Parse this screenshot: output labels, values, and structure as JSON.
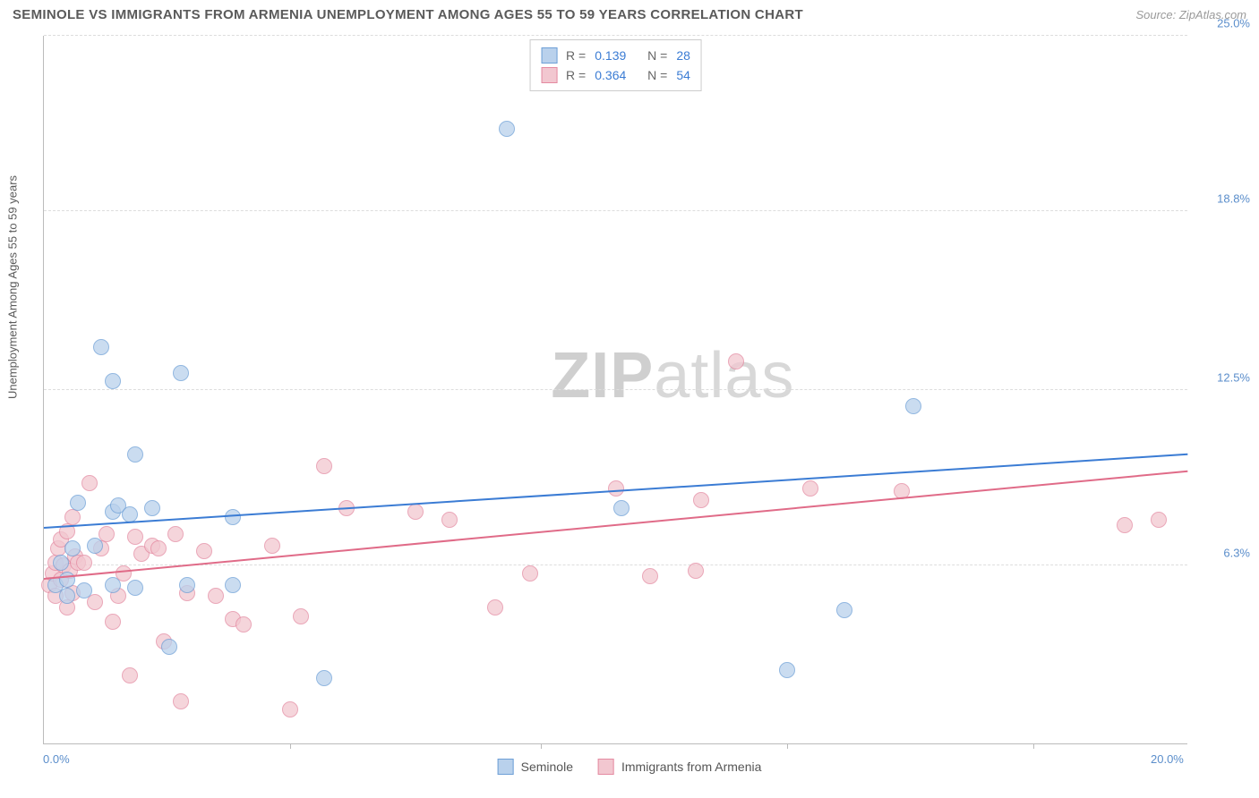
{
  "header": {
    "title": "SEMINOLE VS IMMIGRANTS FROM ARMENIA UNEMPLOYMENT AMONG AGES 55 TO 59 YEARS CORRELATION CHART",
    "source": "Source: ZipAtlas.com"
  },
  "watermark": {
    "part1": "ZIP",
    "part2": "atlas"
  },
  "y_axis": {
    "label": "Unemployment Among Ages 55 to 59 years"
  },
  "stats": {
    "rows": [
      {
        "r_label": "R =",
        "r": "0.139",
        "n_label": "N =",
        "n": "28"
      },
      {
        "r_label": "R =",
        "r": "0.364",
        "n_label": "N =",
        "n": "54"
      }
    ]
  },
  "legend": {
    "items": [
      {
        "label": "Seminole"
      },
      {
        "label": "Immigrants from Armenia"
      }
    ]
  },
  "chart": {
    "type": "scatter",
    "xlim": [
      0,
      20
    ],
    "ylim": [
      0,
      25
    ],
    "x_ticks": [
      {
        "val": 0,
        "label": "0.0%"
      },
      {
        "val": 20,
        "label": "20.0%"
      }
    ],
    "x_marks": [
      4.3,
      8.7,
      13.0,
      17.3
    ],
    "y_ticks": [
      {
        "val": 6.3,
        "label": "6.3%"
      },
      {
        "val": 12.5,
        "label": "12.5%"
      },
      {
        "val": 18.8,
        "label": "18.8%"
      },
      {
        "val": 25.0,
        "label": "25.0%"
      }
    ],
    "grid_y": [
      6.3,
      12.5,
      18.8,
      25.0
    ],
    "background_color": "#ffffff",
    "grid_color": "#dddddd",
    "series": [
      {
        "name": "Seminole",
        "fill_color": "#b9d1ec",
        "stroke_color": "#6d9fd6",
        "line_color": "#3b7cd4",
        "marker_radius": 9,
        "trend": {
          "x0": 0,
          "y0": 7.6,
          "x1": 20,
          "y1": 10.2
        },
        "points": [
          [
            0.2,
            5.6
          ],
          [
            0.3,
            6.4
          ],
          [
            0.4,
            5.2
          ],
          [
            0.4,
            5.8
          ],
          [
            0.5,
            6.9
          ],
          [
            0.6,
            8.5
          ],
          [
            0.7,
            5.4
          ],
          [
            0.9,
            7.0
          ],
          [
            1.0,
            14.0
          ],
          [
            1.2,
            12.8
          ],
          [
            1.2,
            8.2
          ],
          [
            1.2,
            5.6
          ],
          [
            1.3,
            8.4
          ],
          [
            1.5,
            8.1
          ],
          [
            1.6,
            10.2
          ],
          [
            1.6,
            5.5
          ],
          [
            1.9,
            8.3
          ],
          [
            2.2,
            3.4
          ],
          [
            2.4,
            13.1
          ],
          [
            2.5,
            5.6
          ],
          [
            3.3,
            8.0
          ],
          [
            3.3,
            5.6
          ],
          [
            4.9,
            2.3
          ],
          [
            8.1,
            21.7
          ],
          [
            10.1,
            8.3
          ],
          [
            13.0,
            2.6
          ],
          [
            14.0,
            4.7
          ],
          [
            15.2,
            11.9
          ]
        ]
      },
      {
        "name": "Immigrants from Armenia",
        "fill_color": "#f2c7d0",
        "stroke_color": "#e48aa1",
        "line_color": "#e06b88",
        "marker_radius": 9,
        "trend": {
          "x0": 0,
          "y0": 5.8,
          "x1": 20,
          "y1": 9.6
        },
        "points": [
          [
            0.1,
            5.6
          ],
          [
            0.15,
            6.0
          ],
          [
            0.2,
            6.4
          ],
          [
            0.2,
            5.2
          ],
          [
            0.25,
            6.9
          ],
          [
            0.3,
            5.8
          ],
          [
            0.3,
            7.2
          ],
          [
            0.35,
            6.3
          ],
          [
            0.4,
            4.8
          ],
          [
            0.4,
            7.5
          ],
          [
            0.45,
            6.1
          ],
          [
            0.5,
            5.3
          ],
          [
            0.5,
            8.0
          ],
          [
            0.55,
            6.6
          ],
          [
            0.6,
            6.4
          ],
          [
            0.7,
            6.4
          ],
          [
            0.8,
            9.2
          ],
          [
            0.9,
            5.0
          ],
          [
            1.0,
            6.9
          ],
          [
            1.1,
            7.4
          ],
          [
            1.2,
            4.3
          ],
          [
            1.3,
            5.2
          ],
          [
            1.4,
            6.0
          ],
          [
            1.5,
            2.4
          ],
          [
            1.6,
            7.3
          ],
          [
            1.7,
            6.7
          ],
          [
            1.9,
            7.0
          ],
          [
            2.0,
            6.9
          ],
          [
            2.1,
            3.6
          ],
          [
            2.3,
            7.4
          ],
          [
            2.4,
            1.5
          ],
          [
            2.5,
            5.3
          ],
          [
            2.8,
            6.8
          ],
          [
            3.0,
            5.2
          ],
          [
            3.3,
            4.4
          ],
          [
            3.5,
            4.2
          ],
          [
            4.0,
            7.0
          ],
          [
            4.3,
            1.2
          ],
          [
            4.5,
            4.5
          ],
          [
            4.9,
            9.8
          ],
          [
            5.3,
            8.3
          ],
          [
            6.5,
            8.2
          ],
          [
            7.1,
            7.9
          ],
          [
            7.9,
            4.8
          ],
          [
            8.5,
            6.0
          ],
          [
            10.0,
            9.0
          ],
          [
            10.6,
            5.9
          ],
          [
            11.4,
            6.1
          ],
          [
            11.5,
            8.6
          ],
          [
            12.1,
            13.5
          ],
          [
            13.4,
            9.0
          ],
          [
            15.0,
            8.9
          ],
          [
            18.9,
            7.7
          ],
          [
            19.5,
            7.9
          ]
        ]
      }
    ]
  }
}
